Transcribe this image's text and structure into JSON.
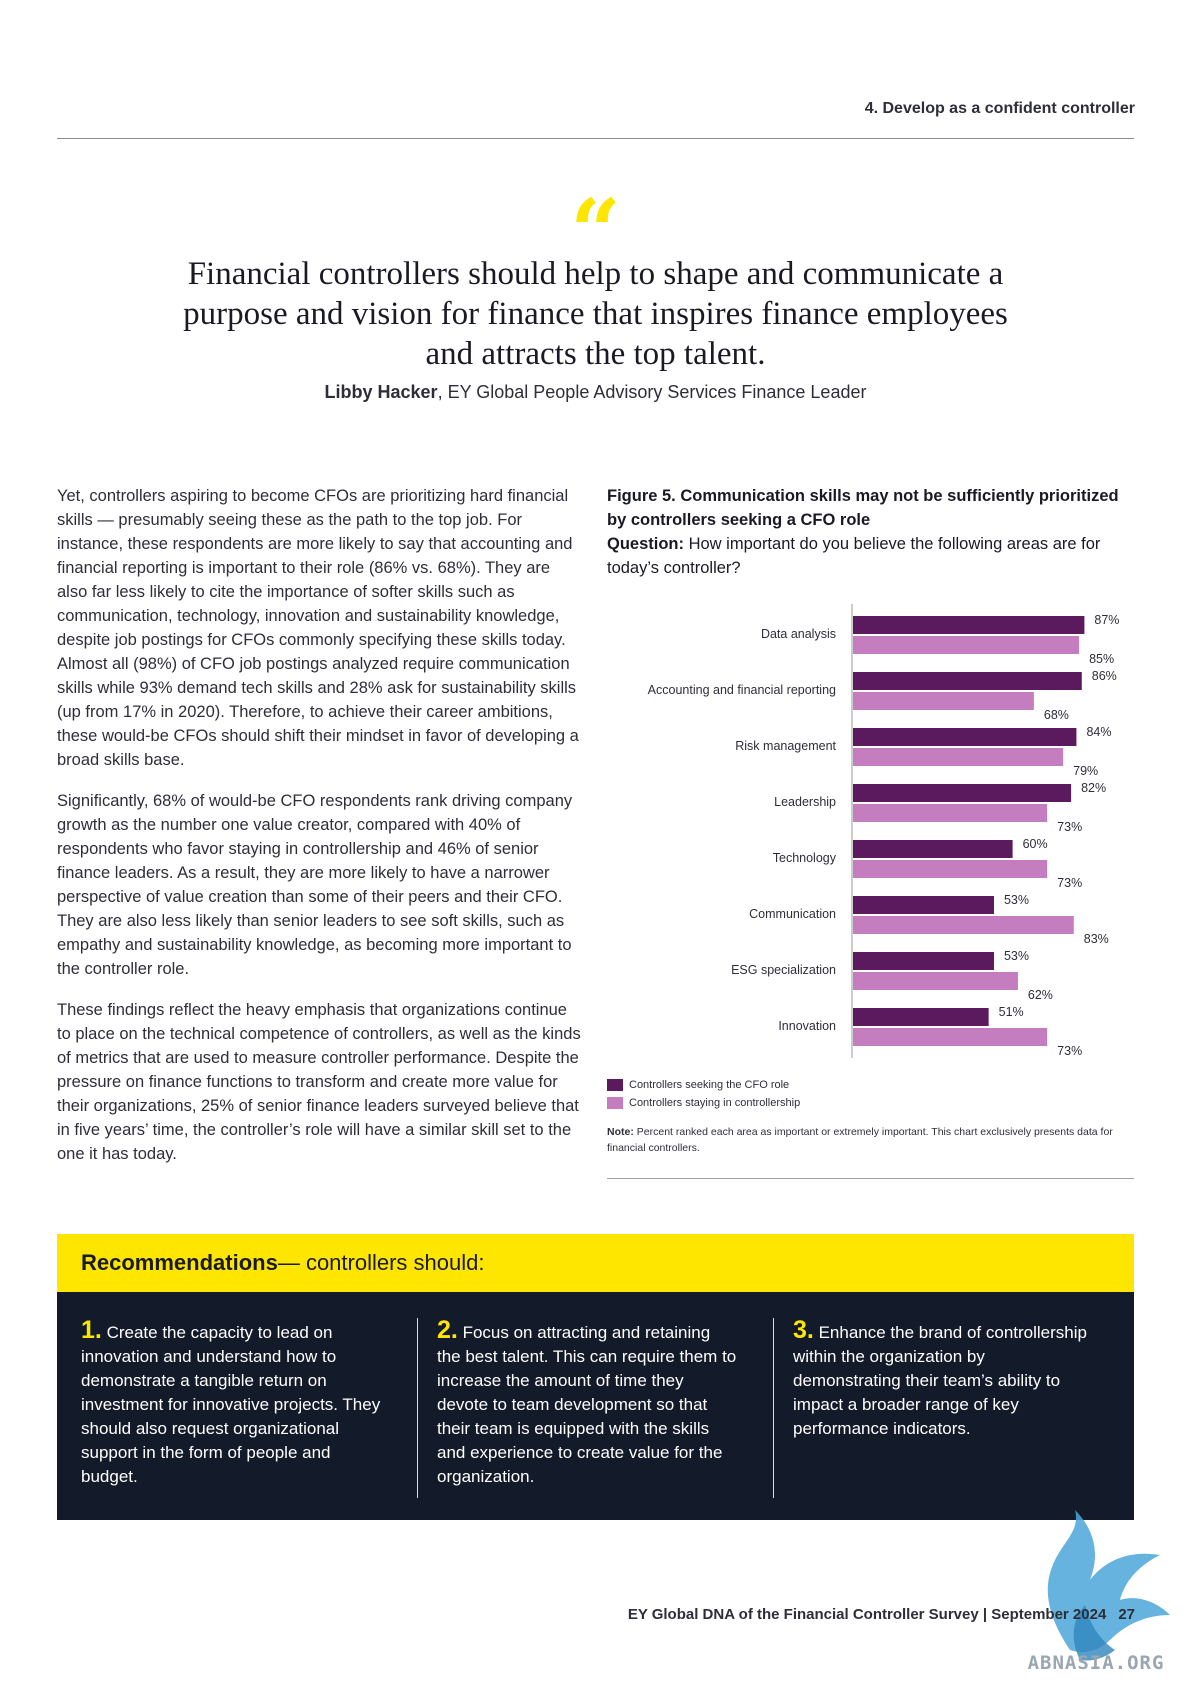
{
  "header": {
    "section_title": "4. Develop as a confident controller"
  },
  "quote": {
    "mark": "“",
    "text": "Financial controllers should help to shape and communicate a purpose and vision for finance that inspires finance employees and attracts the top talent.",
    "author": "Libby Hacker",
    "author_title": ", EY Global People Advisory Services Finance Leader"
  },
  "body": {
    "paragraphs": [
      "Yet, controllers aspiring to become CFOs are prioritizing hard financial skills — presumably seeing these as the path to the top job. For instance, these respondents are more likely to say that accounting and financial reporting is important to their role (86% vs. 68%). They are also far less likely to cite the importance of softer skills such as communication, technology, innovation and sustainability knowledge, despite job postings for CFOs commonly specifying these skills today. Almost all (98%) of CFO job postings analyzed require communication skills while 93% demand tech skills and 28% ask for sustainability skills (up from 17% in 2020). Therefore, to achieve their career ambitions, these would-be CFOs should shift their mindset in favor of developing a broad skills base.",
      "Significantly, 68% of would-be CFO respondents rank driving company growth as the number one value creator, compared with 40% of respondents who favor staying in controllership and 46% of senior finance leaders. As a result, they are more likely to have a narrower perspective of value creation than some of their peers and their CFO. They are also less likely than senior leaders to see soft skills, such as empathy and sustainability knowledge, as becoming more important to the controller role.",
      "These findings reflect the heavy emphasis that organizations continue to place on the technical competence of controllers, as well as the kinds of metrics that are used to measure controller performance. Despite the pressure on finance functions to transform and create more value for their organizations, 25% of senior finance leaders surveyed believe that in five years’ time, the controller’s role will have a similar skill set to the one it has today."
    ]
  },
  "figure": {
    "title": "Figure 5. Communication skills may not be sufficiently prioritized by controllers seeking a CFO role",
    "question_label": "Question:",
    "question_text": " How important do you believe the following areas are for today’s controller?",
    "note_label": "Note:",
    "note_text": " Percent ranked each area as important or extremely important. This chart exclusively presents data for financial controllers."
  },
  "chart_data": {
    "type": "bar",
    "orientation": "horizontal",
    "categories": [
      "Data analysis",
      "Accounting and financial reporting",
      "Risk management",
      "Leadership",
      "Technology",
      "Communication",
      "ESG specialization",
      "Innovation"
    ],
    "series": [
      {
        "name": "Controllers seeking the CFO role",
        "values": [
          87,
          86,
          84,
          82,
          60,
          53,
          53,
          51
        ],
        "color": "#5c1a5e"
      },
      {
        "name": "Controllers staying in controllership",
        "values": [
          85,
          68,
          79,
          73,
          73,
          83,
          62,
          73
        ],
        "color": "#c47dbf"
      }
    ],
    "value_suffix": "%",
    "xlim": [
      0,
      100
    ],
    "legend": "bottom-left"
  },
  "recommendations": {
    "title_bold": "Recommendations",
    "title_rest": " — controllers should:",
    "items": [
      {
        "num": "1.",
        "text": " Create the capacity to lead on innovation and understand how to demonstrate a tangible return on investment for innovative projects. They should also request organizational support in the form of people and budget."
      },
      {
        "num": "2.",
        "text": " Focus on attracting and retaining the best talent. This can require them to increase the amount of time they devote to team development so that their team is equipped with the skills and experience to create value for the organization."
      },
      {
        "num": "3.",
        "text": " Enhance the brand of controllership within the organization by demonstrating their team’s ability to impact a broader range of key performance indicators."
      }
    ]
  },
  "footer": {
    "survey": "EY Global DNA of the Financial Controller Survey | September 2024",
    "page": "27"
  },
  "watermark": {
    "text": "ABNASIA.ORG"
  }
}
